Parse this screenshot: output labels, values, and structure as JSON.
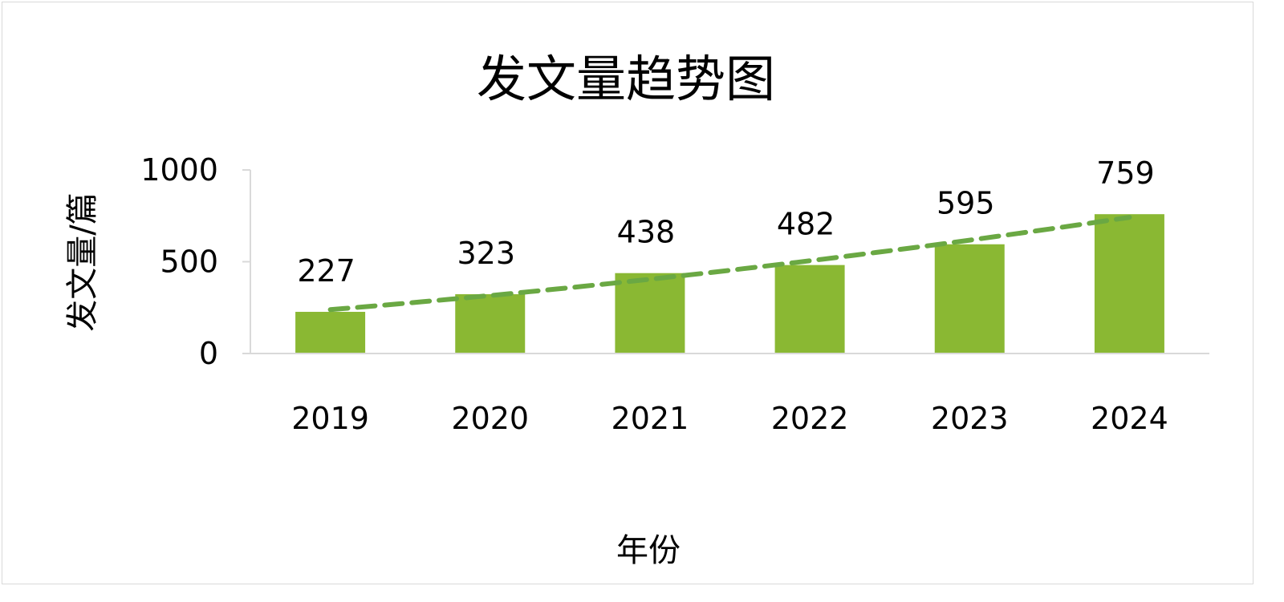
{
  "chart_data": {
    "type": "bar",
    "title": "发文量趋势图",
    "xlabel": "年份",
    "ylabel": "发文量/篇",
    "categories": [
      "2019",
      "2020",
      "2021",
      "2022",
      "2023",
      "2024"
    ],
    "values": [
      227,
      323,
      438,
      482,
      595,
      759
    ],
    "yticks": [
      "0",
      "500",
      "1000"
    ],
    "ylim": [
      0,
      1000
    ],
    "grid": false,
    "legend": "none",
    "trendline": {
      "type": "polynomial",
      "style": "dashed"
    },
    "colors": {
      "bar": "#8ab833",
      "trendline": "#6aa843",
      "axis": "#d9d9d9"
    }
  }
}
